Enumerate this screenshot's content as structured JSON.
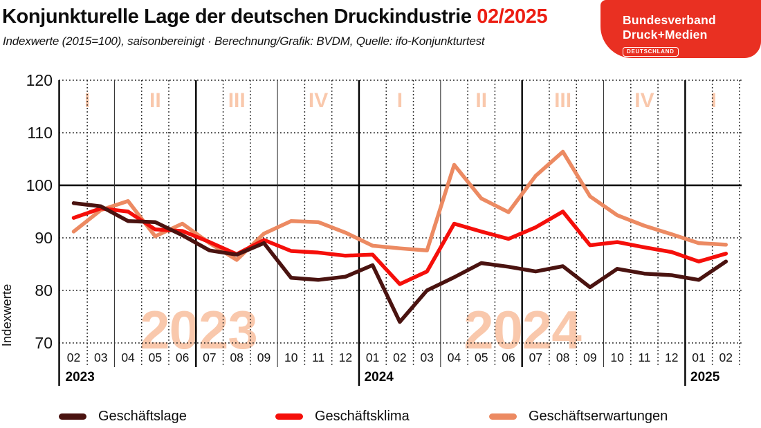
{
  "header": {
    "title_main": "Konjunkturelle Lage der deutschen Druckindustrie",
    "title_period": "02/2025",
    "subtitle": "Indexwerte (2015=100), saisonbereinigt · Berechnung/Grafik: BVDM, Quelle: ifo-Konjunkturtest"
  },
  "logo": {
    "line1": "Bundesverband",
    "line2": "Druck+Medien",
    "badge": "DEUTSCHLAND",
    "bg_color": "#e93022"
  },
  "chart_data": {
    "type": "line",
    "title": "Konjunkturelle Lage der deutschen Druckindustrie 02/2025",
    "ylabel": "Indexwerte",
    "ylim": [
      70,
      120
    ],
    "yticks": [
      70,
      80,
      90,
      100,
      110,
      120
    ],
    "reference_line": 100,
    "grid": "dotted monthly verticals and 10-pt horizontals, solid black line at 100, solid separators at quarter/year breaks",
    "legend_position": "bottom",
    "x_months": [
      "02",
      "03",
      "04",
      "05",
      "06",
      "07",
      "08",
      "09",
      "10",
      "11",
      "12",
      "01",
      "02",
      "03",
      "04",
      "05",
      "06",
      "07",
      "08",
      "09",
      "10",
      "11",
      "12",
      "01",
      "02"
    ],
    "year_labels": [
      {
        "text": "2023",
        "month_index": 0
      },
      {
        "text": "2024",
        "month_index": 11
      },
      {
        "text": "2025",
        "month_index": 23
      }
    ],
    "quarter_labels": [
      "I",
      "II",
      "III",
      "IV",
      "I",
      "II",
      "III",
      "IV",
      "I"
    ],
    "watermarks": [
      "2023",
      "2024"
    ],
    "style": {
      "peach": "#f9c8ac",
      "accent_red": "#ec1e13"
    },
    "series": [
      {
        "name": "Geschäftslage",
        "color": "#4a1310",
        "values": [
          96.6,
          96,
          93.2,
          93,
          90.5,
          87.6,
          86.8,
          89,
          82.4,
          82,
          82.6,
          84.8,
          74,
          80,
          82.5,
          85.2,
          84.5,
          83.6,
          84.6,
          80.6,
          84.1,
          83.2,
          82.9,
          82,
          85.5
        ]
      },
      {
        "name": "Geschäftsklima",
        "color": "#f50f0a",
        "values": [
          93.8,
          95.6,
          95,
          91.6,
          91.3,
          89.2,
          86.9,
          89.6,
          87.5,
          87.2,
          86.6,
          86.8,
          81.2,
          83.6,
          92.7,
          91.2,
          89.8,
          92,
          95,
          88.6,
          89.2,
          88.2,
          87.3,
          85.5,
          87
        ]
      },
      {
        "name": "Geschäftserwartungen",
        "color": "#ec8a62",
        "values": [
          91.2,
          95.3,
          97,
          90.3,
          92.7,
          89,
          85.8,
          90.8,
          93.2,
          93,
          91,
          88.5,
          88,
          87.6,
          103.9,
          97.5,
          94.9,
          101.8,
          106.4,
          97.9,
          94.3,
          92.3,
          90.7,
          89,
          88.7
        ]
      }
    ]
  }
}
